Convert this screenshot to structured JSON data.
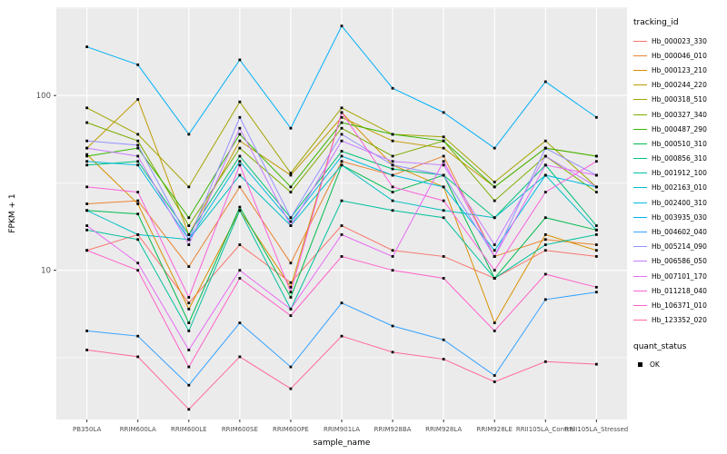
{
  "chart_data": {
    "type": "line",
    "title": "",
    "xlabel": "sample_name",
    "ylabel": "FPKM + 1",
    "y_scale": "log10",
    "y_ticks": [
      10,
      100
    ],
    "ylim": [
      1.4,
      320
    ],
    "minor_gridlines": [
      3.1623,
      31.623,
      316.23
    ],
    "panel_bg": "#EBEBEB",
    "grid_color": "#FFFFFF",
    "point_color": "#000000",
    "tick_label_color": "#4D4D4D",
    "categories": [
      "PB350LA",
      "RRIM600LA",
      "RRIM600LE",
      "RRIM600SE",
      "RRIM600PE",
      "RRIM901LA",
      "RRIM928BA",
      "RRIM928LA",
      "RRIM928LE",
      "RRII105LA_Control",
      "RRII105LA_Stressed"
    ],
    "series": [
      {
        "name": "Hb_000023_330",
        "color": "#F8766D",
        "values": [
          13,
          16,
          6.5,
          14,
          8.5,
          18,
          13,
          12,
          9,
          13,
          12
        ]
      },
      {
        "name": "Hb_000046_010",
        "color": "#EA8331",
        "values": [
          24,
          25,
          10.5,
          30,
          11,
          42,
          35,
          45,
          12,
          15,
          14
        ]
      },
      {
        "name": "Hb_000123_210",
        "color": "#D89000",
        "values": [
          46,
          24,
          6,
          22,
          8,
          80,
          40,
          30,
          5,
          16,
          13
        ]
      },
      {
        "name": "Hb_000244_220",
        "color": "#C09B00",
        "values": [
          50,
          95,
          16,
          55,
          35,
          75,
          55,
          50,
          30,
          50,
          45
        ]
      },
      {
        "name": "Hb_000318_510",
        "color": "#A3A500",
        "values": [
          85,
          60,
          30,
          92,
          36,
          85,
          60,
          58,
          32,
          55,
          30
        ]
      },
      {
        "name": "Hb_000327_340",
        "color": "#7CAE00",
        "values": [
          70,
          55,
          18,
          50,
          28,
          65,
          45,
          55,
          25,
          45,
          28
        ]
      },
      {
        "name": "Hb_000487_290",
        "color": "#39B600",
        "values": [
          45,
          50,
          20,
          60,
          30,
          70,
          60,
          55,
          30,
          50,
          45
        ]
      },
      {
        "name": "Hb_000510_310",
        "color": "#00BB4E",
        "values": [
          22,
          21,
          5,
          23,
          7,
          40,
          28,
          35,
          9,
          20,
          17
        ]
      },
      {
        "name": "Hb_000856_310",
        "color": "#00C079",
        "values": [
          40,
          42,
          16,
          45,
          20,
          48,
          38,
          35,
          20,
          40,
          18
        ]
      },
      {
        "name": "Hb_001912_100",
        "color": "#00C19C",
        "values": [
          17,
          15,
          4.5,
          22,
          6,
          25,
          22,
          20,
          9,
          14,
          16
        ]
      },
      {
        "name": "Hb_002163_010",
        "color": "#00BFC4",
        "values": [
          22,
          16,
          15,
          35,
          18,
          40,
          25,
          22,
          20,
          35,
          17
        ]
      },
      {
        "name": "Hb_002400_310",
        "color": "#00BAE0",
        "values": [
          42,
          40,
          15,
          42,
          19,
          45,
          35,
          30,
          13,
          35,
          30
        ]
      },
      {
        "name": "Hb_003935_030",
        "color": "#00B0F6",
        "values": [
          190,
          150,
          60,
          160,
          65,
          250,
          110,
          80,
          50,
          120,
          75
        ]
      },
      {
        "name": "Hb_004602_040",
        "color": "#35A2FF",
        "values": [
          4.5,
          4.2,
          2.2,
          5,
          2.8,
          6.5,
          4.8,
          4,
          2.5,
          6.8,
          7.5
        ]
      },
      {
        "name": "Hb_005214_090",
        "color": "#9590FF",
        "values": [
          55,
          52,
          15,
          75,
          20,
          60,
          40,
          35,
          12,
          50,
          35
        ]
      },
      {
        "name": "Hb_006586_050",
        "color": "#C77CFF",
        "values": [
          50,
          45,
          14,
          65,
          18,
          55,
          42,
          40,
          14,
          45,
          30
        ]
      },
      {
        "name": "Hb_007101_170",
        "color": "#E76BF3",
        "values": [
          18,
          11,
          3.5,
          10,
          6,
          16,
          12,
          42,
          12,
          40,
          35
        ]
      },
      {
        "name": "Hb_011218_040",
        "color": "#FA62DB",
        "values": [
          30,
          28,
          7,
          40,
          7.5,
          80,
          30,
          25,
          10,
          28,
          42
        ]
      },
      {
        "name": "Hb_106371_010",
        "color": "#FF61C9",
        "values": [
          13,
          10,
          2.8,
          9,
          5.5,
          12,
          10,
          9,
          4.5,
          9.5,
          8
        ]
      },
      {
        "name": "Hb_123352_020",
        "color": "#FF6A98",
        "values": [
          3.5,
          3.2,
          1.6,
          3.2,
          2.1,
          4.2,
          3.4,
          3.1,
          2.3,
          3,
          2.9
        ]
      }
    ],
    "legend": {
      "color_title": "tracking_id",
      "shape_title": "quant_status",
      "shape_items": [
        {
          "label": "OK",
          "shape": "filled-square",
          "color": "#000000"
        }
      ]
    }
  }
}
